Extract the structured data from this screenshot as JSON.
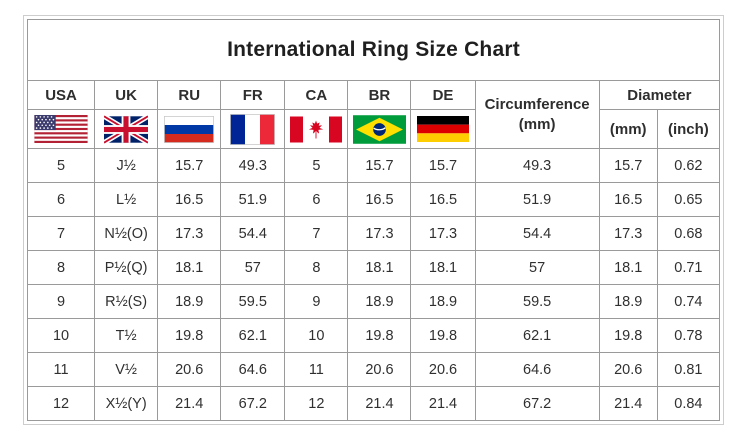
{
  "title": "International Ring Size Chart",
  "header": {
    "countries": [
      "USA",
      "UK",
      "RU",
      "FR",
      "CA",
      "BR",
      "DE"
    ],
    "flags": [
      "us-flag",
      "uk-flag",
      "ru-flag",
      "fr-flag",
      "ca-flag",
      "br-flag",
      "de-flag"
    ],
    "circumference": {
      "line1": "Circumference",
      "line2": "(mm)"
    },
    "diameter": {
      "label": "Diameter",
      "units": [
        "(mm)",
        "(inch)"
      ]
    }
  },
  "chart_data": {
    "type": "table",
    "title": "International Ring Size Chart",
    "columns": [
      "USA",
      "UK",
      "RU",
      "FR",
      "CA",
      "BR",
      "DE",
      "Circumference (mm)",
      "Diameter (mm)",
      "Diameter (inch)"
    ],
    "column_keys": [
      "usa",
      "uk",
      "ru",
      "fr",
      "ca",
      "br",
      "de",
      "circumference-mm",
      "diameter-mm",
      "diameter-inch"
    ],
    "rows": [
      [
        "5",
        "J½",
        "15.7",
        "49.3",
        "5",
        "15.7",
        "15.7",
        "49.3",
        "15.7",
        "0.62"
      ],
      [
        "6",
        "L½",
        "16.5",
        "51.9",
        "6",
        "16.5",
        "16.5",
        "51.9",
        "16.5",
        "0.65"
      ],
      [
        "7",
        "N½(O)",
        "17.3",
        "54.4",
        "7",
        "17.3",
        "17.3",
        "54.4",
        "17.3",
        "0.68"
      ],
      [
        "8",
        "P½(Q)",
        "18.1",
        "57",
        "8",
        "18.1",
        "18.1",
        "57",
        "18.1",
        "0.71"
      ],
      [
        "9",
        "R½(S)",
        "18.9",
        "59.5",
        "9",
        "18.9",
        "18.9",
        "59.5",
        "18.9",
        "0.74"
      ],
      [
        "10",
        "T½",
        "19.8",
        "62.1",
        "10",
        "19.8",
        "19.8",
        "62.1",
        "19.8",
        "0.78"
      ],
      [
        "11",
        "V½",
        "20.6",
        "64.6",
        "11",
        "20.6",
        "20.6",
        "64.6",
        "20.6",
        "0.81"
      ],
      [
        "12",
        "X½(Y)",
        "21.4",
        "67.2",
        "12",
        "21.4",
        "21.4",
        "67.2",
        "21.4",
        "0.84"
      ]
    ]
  },
  "colors": {
    "grid_border": "#9a9a9a",
    "outer_border": "#cdcdcd",
    "text": "#303030",
    "background": "#ffffff"
  }
}
